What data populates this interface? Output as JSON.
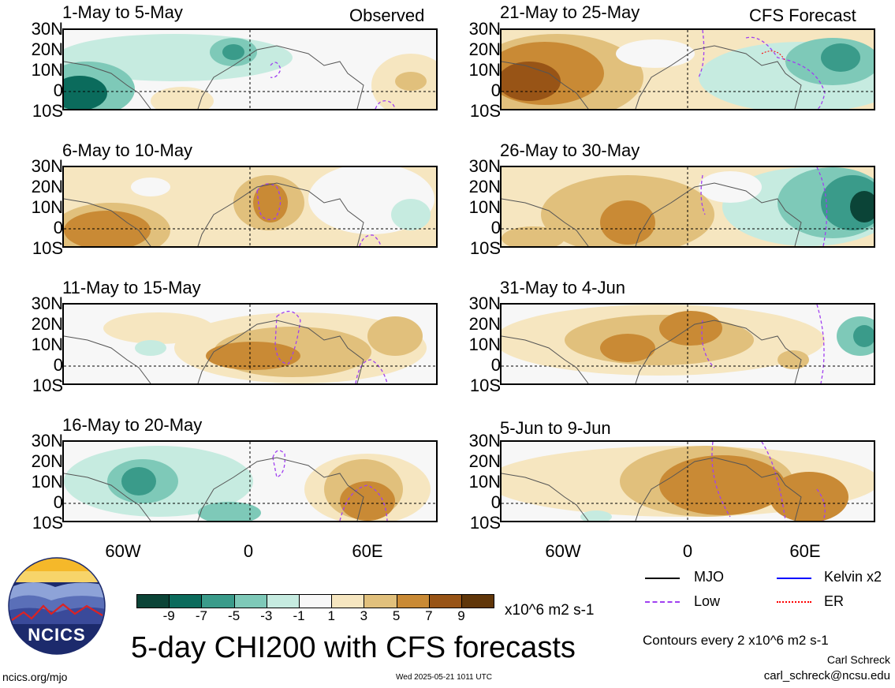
{
  "panels_left": [
    {
      "title": "1-May to 5-May",
      "tag": "Observed"
    },
    {
      "title": "6-May to 10-May",
      "tag": ""
    },
    {
      "title": "11-May to 15-May",
      "tag": ""
    },
    {
      "title": "16-May to 20-May",
      "tag": ""
    }
  ],
  "panels_right": [
    {
      "title": "21-May to 25-May",
      "tag": "CFS Forecast"
    },
    {
      "title": "26-May to 30-May",
      "tag": ""
    },
    {
      "title": "31-May to 4-Jun",
      "tag": ""
    },
    {
      "title": "5-Jun to 9-Jun",
      "tag": ""
    }
  ],
  "lat_labels": [
    "30N",
    "20N",
    "10N",
    "0",
    "10S"
  ],
  "lon_labels": [
    "60W",
    "0",
    "60E"
  ],
  "colorbar": {
    "colors": [
      "#0b4437",
      "#0b6b5c",
      "#3a9b8a",
      "#7ec9b8",
      "#c6ebe0",
      "#f7f7f7",
      "#f6e6c0",
      "#e1c07c",
      "#c98a35",
      "#985416",
      "#603609"
    ],
    "labels": [
      "-9",
      "-7",
      "-5",
      "-3",
      "-1",
      "1",
      "3",
      "5",
      "7",
      "9"
    ],
    "units": "x10^6 m2 s-1"
  },
  "legend": {
    "mjo": "MJO",
    "kelvin": "Kelvin x2",
    "low": "Low",
    "er": "ER",
    "colors": {
      "mjo": "#000000",
      "kelvin": "#0000ff",
      "low": "#a040f0",
      "er": "#ff0000"
    }
  },
  "main_title": "5-day CHI200 with CFS forecasts",
  "contours_note": "Contours every 2 x10^6 m2 s-1",
  "author": "Carl Schreck",
  "email": "carl_schreck@ncsu.edu",
  "site": "ncics.org/mjo",
  "timestamp": "Wed 2025-05-21 1011 UTC",
  "logo_text": "NCICS"
}
